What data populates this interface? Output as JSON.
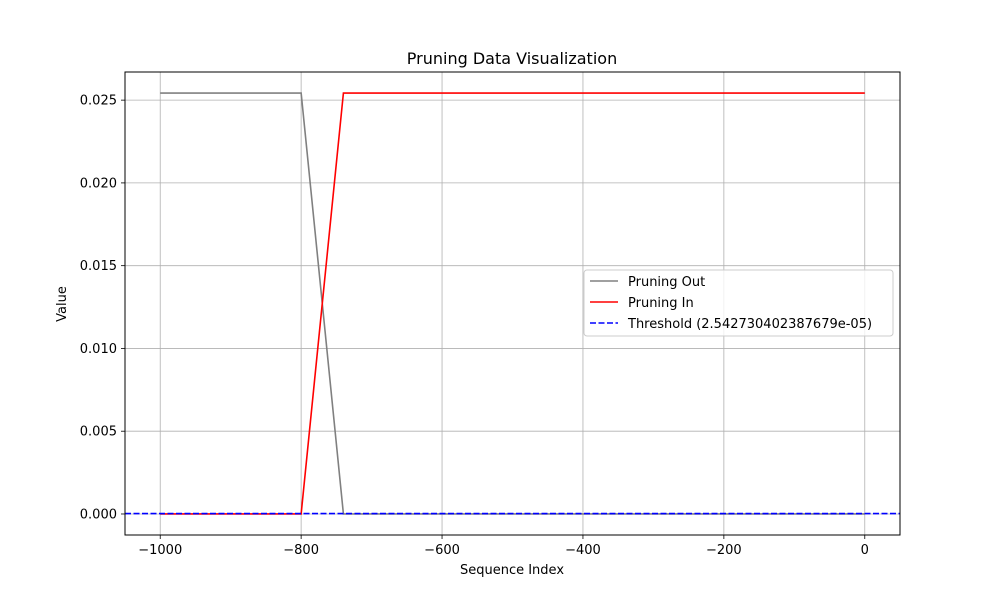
{
  "chart_data": {
    "type": "line",
    "title": "Pruning Data Visualization",
    "xlabel": "Sequence Index",
    "ylabel": "Value",
    "xlim": [
      -1050,
      50
    ],
    "ylim": [
      -0.00127,
      0.0267
    ],
    "xticks": [
      -1000,
      -800,
      -600,
      -400,
      -200,
      0
    ],
    "xtick_labels": [
      "−1000",
      "−800",
      "−600",
      "−400",
      "−200",
      "0"
    ],
    "yticks": [
      0.0,
      0.005,
      0.01,
      0.015,
      0.02,
      0.025
    ],
    "ytick_labels": [
      "0.000",
      "0.005",
      "0.010",
      "0.015",
      "0.020",
      "0.025"
    ],
    "grid": true,
    "legend_position": "center-right",
    "series": [
      {
        "name": "Pruning Out",
        "color": "#808080",
        "style": "solid",
        "x": [
          -1000,
          -800,
          -740,
          0
        ],
        "y": [
          0.02543,
          0.02543,
          0.0,
          0.0
        ]
      },
      {
        "name": "Pruning In",
        "color": "#ff0000",
        "style": "solid",
        "x": [
          -1000,
          -800,
          -740,
          0
        ],
        "y": [
          0.0,
          0.0,
          0.02543,
          0.02543
        ]
      }
    ],
    "threshold": {
      "name": "Threshold (2.542730402387679e-05)",
      "color": "#0000ff",
      "style": "dashed",
      "y": 2.542730402387679e-05
    }
  }
}
